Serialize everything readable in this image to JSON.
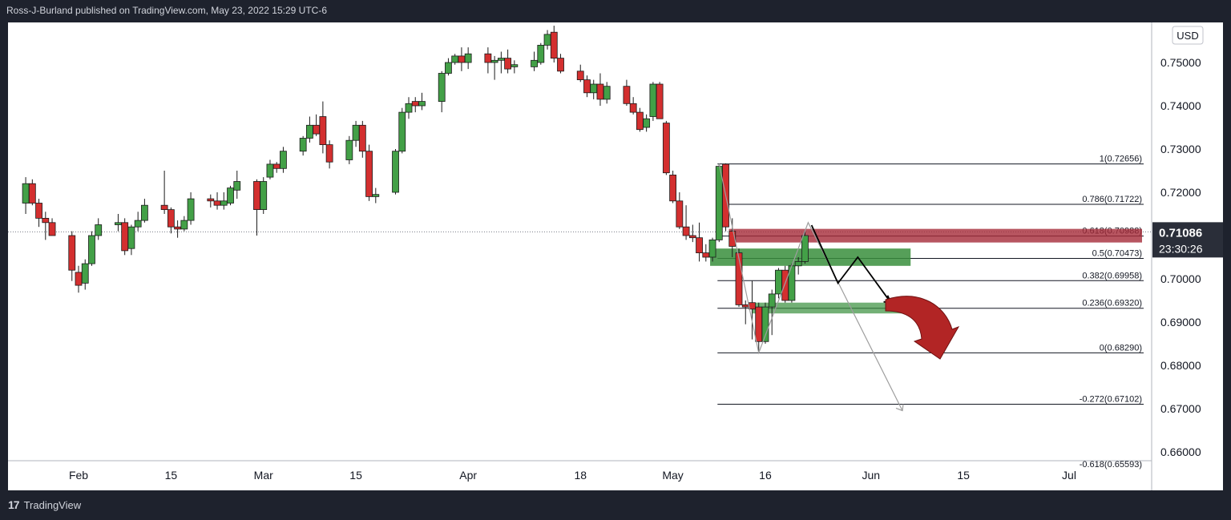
{
  "header": {
    "published": "Ross-J-Burland published on TradingView.com, May 23, 2022 15:29 UTC-6"
  },
  "footer": {
    "logo_glyph": "17",
    "brand": "TradingView"
  },
  "chart_data": {
    "type": "candlestick",
    "currency": "USD",
    "ylim": [
      0.6555,
      0.7592
    ],
    "y_ticks": [
      "0.75000",
      "0.74000",
      "0.73000",
      "0.72000",
      "0.70000",
      "0.69000",
      "0.68000",
      "0.67000",
      "0.66000"
    ],
    "y_tick_values": [
      0.75,
      0.74,
      0.73,
      0.72,
      0.7,
      0.69,
      0.68,
      0.67,
      0.66
    ],
    "x_ticks": [
      "Feb",
      "15",
      "Mar",
      "15",
      "Apr",
      "18",
      "May",
      "16",
      "Jun",
      "15",
      "Jul"
    ],
    "x_tick_dates": [
      "2022-02-01",
      "2022-02-15",
      "2022-03-01",
      "2022-03-15",
      "2022-04-01",
      "2022-04-18",
      "2022-05-02",
      "2022-05-16",
      "2022-06-01",
      "2022-06-15",
      "2022-07-01"
    ],
    "last_price": "0.71086",
    "last_price_value": 0.71086,
    "countdown": "23:30:26",
    "fib_levels": [
      {
        "label": "1(0.72656)",
        "value": 0.72656
      },
      {
        "label": "0.786(0.71722)",
        "value": 0.71722
      },
      {
        "label": "0.618(0.70988)",
        "value": 0.70988
      },
      {
        "label": "0.5(0.70473)",
        "value": 0.70473
      },
      {
        "label": "0.382(0.69958)",
        "value": 0.69958
      },
      {
        "label": "0.236(0.69320)",
        "value": 0.6932
      },
      {
        "label": "0(0.68290)",
        "value": 0.6829
      },
      {
        "label": "-0.272(0.67102)",
        "value": 0.67102
      },
      {
        "label": "-0.618(0.65593)",
        "value": 0.65593
      }
    ],
    "candles": [
      {
        "d": "2022-01-24",
        "o": 0.7175,
        "h": 0.7235,
        "l": 0.715,
        "c": 0.722
      },
      {
        "d": "2022-01-25",
        "o": 0.722,
        "h": 0.723,
        "l": 0.717,
        "c": 0.7175
      },
      {
        "d": "2022-01-26",
        "o": 0.7175,
        "h": 0.7185,
        "l": 0.712,
        "c": 0.714
      },
      {
        "d": "2022-01-27",
        "o": 0.714,
        "h": 0.7155,
        "l": 0.709,
        "c": 0.713
      },
      {
        "d": "2022-01-28",
        "o": 0.713,
        "h": 0.714,
        "l": 0.71,
        "c": 0.71
      },
      {
        "d": "2022-01-31",
        "o": 0.71,
        "h": 0.711,
        "l": 0.6995,
        "c": 0.702
      },
      {
        "d": "2022-02-01",
        "o": 0.7015,
        "h": 0.703,
        "l": 0.6968,
        "c": 0.6985
      },
      {
        "d": "2022-02-02",
        "o": 0.699,
        "h": 0.7045,
        "l": 0.6975,
        "c": 0.7035
      },
      {
        "d": "2022-02-03",
        "o": 0.7035,
        "h": 0.711,
        "l": 0.703,
        "c": 0.71
      },
      {
        "d": "2022-02-04",
        "o": 0.71,
        "h": 0.714,
        "l": 0.709,
        "c": 0.7125
      },
      {
        "d": "2022-02-07",
        "o": 0.7125,
        "h": 0.715,
        "l": 0.711,
        "c": 0.713
      },
      {
        "d": "2022-02-08",
        "o": 0.713,
        "h": 0.714,
        "l": 0.7055,
        "c": 0.7065
      },
      {
        "d": "2022-02-09",
        "o": 0.707,
        "h": 0.7125,
        "l": 0.7055,
        "c": 0.712
      },
      {
        "d": "2022-02-10",
        "o": 0.712,
        "h": 0.7155,
        "l": 0.711,
        "c": 0.7135
      },
      {
        "d": "2022-02-11",
        "o": 0.7135,
        "h": 0.7185,
        "l": 0.713,
        "c": 0.717
      },
      {
        "d": "2022-02-14",
        "o": 0.717,
        "h": 0.725,
        "l": 0.715,
        "c": 0.716
      },
      {
        "d": "2022-02-15",
        "o": 0.716,
        "h": 0.7165,
        "l": 0.7105,
        "c": 0.712
      },
      {
        "d": "2022-02-16",
        "o": 0.712,
        "h": 0.7135,
        "l": 0.7095,
        "c": 0.7115
      },
      {
        "d": "2022-02-17",
        "o": 0.7115,
        "h": 0.7145,
        "l": 0.711,
        "c": 0.7135
      },
      {
        "d": "2022-02-18",
        "o": 0.7135,
        "h": 0.72,
        "l": 0.7125,
        "c": 0.7185
      },
      {
        "d": "2022-02-21",
        "o": 0.7185,
        "h": 0.7195,
        "l": 0.7165,
        "c": 0.718
      },
      {
        "d": "2022-02-22",
        "o": 0.718,
        "h": 0.72,
        "l": 0.716,
        "c": 0.717
      },
      {
        "d": "2022-02-23",
        "o": 0.717,
        "h": 0.72,
        "l": 0.716,
        "c": 0.718
      },
      {
        "d": "2022-02-24",
        "o": 0.7175,
        "h": 0.7215,
        "l": 0.717,
        "c": 0.721
      },
      {
        "d": "2022-02-25",
        "o": 0.7205,
        "h": 0.725,
        "l": 0.7185,
        "c": 0.7225
      },
      {
        "d": "2022-02-28",
        "o": 0.7225,
        "h": 0.723,
        "l": 0.71,
        "c": 0.716
      },
      {
        "d": "2022-03-01",
        "o": 0.716,
        "h": 0.7235,
        "l": 0.715,
        "c": 0.7225
      },
      {
        "d": "2022-03-02",
        "o": 0.7235,
        "h": 0.7275,
        "l": 0.723,
        "c": 0.7265
      },
      {
        "d": "2022-03-03",
        "o": 0.7265,
        "h": 0.727,
        "l": 0.7245,
        "c": 0.7255
      },
      {
        "d": "2022-03-04",
        "o": 0.7255,
        "h": 0.7305,
        "l": 0.7245,
        "c": 0.7295
      },
      {
        "d": "2022-03-07",
        "o": 0.7295,
        "h": 0.733,
        "l": 0.7285,
        "c": 0.7325
      },
      {
        "d": "2022-03-08",
        "o": 0.7325,
        "h": 0.7375,
        "l": 0.7315,
        "c": 0.7355
      },
      {
        "d": "2022-03-09",
        "o": 0.7355,
        "h": 0.738,
        "l": 0.733,
        "c": 0.7335
      },
      {
        "d": "2022-03-10",
        "o": 0.7375,
        "h": 0.741,
        "l": 0.729,
        "c": 0.731
      },
      {
        "d": "2022-03-11",
        "o": 0.731,
        "h": 0.732,
        "l": 0.7255,
        "c": 0.727
      },
      {
        "d": "2022-03-14",
        "o": 0.7275,
        "h": 0.733,
        "l": 0.7265,
        "c": 0.732
      },
      {
        "d": "2022-03-15",
        "o": 0.732,
        "h": 0.7365,
        "l": 0.7305,
        "c": 0.7355
      },
      {
        "d": "2022-03-16",
        "o": 0.7355,
        "h": 0.7365,
        "l": 0.728,
        "c": 0.7295
      },
      {
        "d": "2022-03-17",
        "o": 0.7295,
        "h": 0.731,
        "l": 0.718,
        "c": 0.719
      },
      {
        "d": "2022-03-18",
        "o": 0.719,
        "h": 0.721,
        "l": 0.7175,
        "c": 0.7195
      },
      {
        "d": "2022-03-21",
        "o": 0.72,
        "h": 0.73,
        "l": 0.7195,
        "c": 0.7295
      },
      {
        "d": "2022-03-22",
        "o": 0.7295,
        "h": 0.7395,
        "l": 0.729,
        "c": 0.7385
      },
      {
        "d": "2022-03-23",
        "o": 0.7385,
        "h": 0.742,
        "l": 0.737,
        "c": 0.7405
      },
      {
        "d": "2022-03-24",
        "o": 0.741,
        "h": 0.742,
        "l": 0.7385,
        "c": 0.74
      },
      {
        "d": "2022-03-25",
        "o": 0.74,
        "h": 0.743,
        "l": 0.739,
        "c": 0.741
      },
      {
        "d": "2022-03-28",
        "o": 0.741,
        "h": 0.748,
        "l": 0.7385,
        "c": 0.7475
      },
      {
        "d": "2022-03-29",
        "o": 0.7475,
        "h": 0.751,
        "l": 0.747,
        "c": 0.75
      },
      {
        "d": "2022-03-30",
        "o": 0.75,
        "h": 0.752,
        "l": 0.7495,
        "c": 0.7515
      },
      {
        "d": "2022-03-31",
        "o": 0.7515,
        "h": 0.7535,
        "l": 0.748,
        "c": 0.75
      },
      {
        "d": "2022-04-01",
        "o": 0.75,
        "h": 0.7535,
        "l": 0.7485,
        "c": 0.752
      },
      {
        "d": "2022-04-04",
        "o": 0.752,
        "h": 0.7535,
        "l": 0.7475,
        "c": 0.75
      },
      {
        "d": "2022-04-05",
        "o": 0.75,
        "h": 0.7515,
        "l": 0.746,
        "c": 0.7505
      },
      {
        "d": "2022-04-06",
        "o": 0.7505,
        "h": 0.7525,
        "l": 0.7475,
        "c": 0.751
      },
      {
        "d": "2022-04-07",
        "o": 0.751,
        "h": 0.753,
        "l": 0.7475,
        "c": 0.7485
      },
      {
        "d": "2022-04-08",
        "o": 0.749,
        "h": 0.7505,
        "l": 0.7475,
        "c": 0.7495
      },
      {
        "d": "2022-04-11",
        "o": 0.749,
        "h": 0.7525,
        "l": 0.748,
        "c": 0.7505
      },
      {
        "d": "2022-04-12",
        "o": 0.75,
        "h": 0.7545,
        "l": 0.7495,
        "c": 0.754
      },
      {
        "d": "2022-04-13",
        "o": 0.754,
        "h": 0.7575,
        "l": 0.753,
        "c": 0.7565
      },
      {
        "d": "2022-04-14",
        "o": 0.757,
        "h": 0.7585,
        "l": 0.75,
        "c": 0.751
      },
      {
        "d": "2022-04-15",
        "o": 0.751,
        "h": 0.752,
        "l": 0.7475,
        "c": 0.748
      },
      {
        "d": "2022-04-18",
        "o": 0.748,
        "h": 0.7495,
        "l": 0.7455,
        "c": 0.746
      },
      {
        "d": "2022-04-19",
        "o": 0.746,
        "h": 0.747,
        "l": 0.742,
        "c": 0.743
      },
      {
        "d": "2022-04-20",
        "o": 0.743,
        "h": 0.746,
        "l": 0.7415,
        "c": 0.745
      },
      {
        "d": "2022-04-21",
        "o": 0.745,
        "h": 0.7475,
        "l": 0.74,
        "c": 0.7415
      },
      {
        "d": "2022-04-22",
        "o": 0.7415,
        "h": 0.7455,
        "l": 0.7405,
        "c": 0.7445
      },
      {
        "d": "2022-04-25",
        "o": 0.7445,
        "h": 0.746,
        "l": 0.74,
        "c": 0.7405
      },
      {
        "d": "2022-04-26",
        "o": 0.7405,
        "h": 0.742,
        "l": 0.738,
        "c": 0.7385
      },
      {
        "d": "2022-04-27",
        "o": 0.7385,
        "h": 0.7395,
        "l": 0.734,
        "c": 0.7345
      },
      {
        "d": "2022-04-28",
        "o": 0.735,
        "h": 0.738,
        "l": 0.734,
        "c": 0.737
      },
      {
        "d": "2022-04-29",
        "o": 0.7375,
        "h": 0.7455,
        "l": 0.7365,
        "c": 0.745
      },
      {
        "d": "2022-04-30",
        "o": 0.745,
        "h": 0.7455,
        "l": 0.737,
        "c": 0.737
      },
      {
        "d": "2022-05-01",
        "o": 0.736,
        "h": 0.7365,
        "l": 0.724,
        "c": 0.7245
      },
      {
        "d": "2022-05-02",
        "o": 0.724,
        "h": 0.725,
        "l": 0.7175,
        "c": 0.718
      },
      {
        "d": "2022-05-03",
        "o": 0.718,
        "h": 0.72,
        "l": 0.7115,
        "c": 0.712
      },
      {
        "d": "2022-05-04",
        "o": 0.712,
        "h": 0.717,
        "l": 0.709,
        "c": 0.71
      },
      {
        "d": "2022-05-05",
        "o": 0.71,
        "h": 0.7125,
        "l": 0.7085,
        "c": 0.7095
      },
      {
        "d": "2022-05-06",
        "o": 0.7095,
        "h": 0.713,
        "l": 0.704,
        "c": 0.706
      },
      {
        "d": "2022-05-07",
        "o": 0.706,
        "h": 0.708,
        "l": 0.704,
        "c": 0.705
      },
      {
        "d": "2022-05-08",
        "o": 0.705,
        "h": 0.7095,
        "l": 0.704,
        "c": 0.709
      },
      {
        "d": "2022-05-09",
        "o": 0.709,
        "h": 0.7265,
        "l": 0.7085,
        "c": 0.726
      },
      {
        "d": "2022-05-10",
        "o": 0.7265,
        "h": 0.7267,
        "l": 0.711,
        "c": 0.712
      },
      {
        "d": "2022-05-11",
        "o": 0.711,
        "h": 0.714,
        "l": 0.705,
        "c": 0.7075
      },
      {
        "d": "2022-05-12",
        "o": 0.706,
        "h": 0.707,
        "l": 0.6935,
        "c": 0.694
      },
      {
        "d": "2022-05-13",
        "o": 0.694,
        "h": 0.695,
        "l": 0.6895,
        "c": 0.6935
      },
      {
        "d": "2022-05-14",
        "o": 0.6945,
        "h": 0.6995,
        "l": 0.686,
        "c": 0.693
      },
      {
        "d": "2022-05-15",
        "o": 0.6935,
        "h": 0.6945,
        "l": 0.6829,
        "c": 0.6855
      },
      {
        "d": "2022-05-16",
        "o": 0.6855,
        "h": 0.6945,
        "l": 0.685,
        "c": 0.6935
      },
      {
        "d": "2022-05-17",
        "o": 0.6935,
        "h": 0.6975,
        "l": 0.687,
        "c": 0.6965
      },
      {
        "d": "2022-05-18",
        "o": 0.6965,
        "h": 0.7025,
        "l": 0.6955,
        "c": 0.702
      },
      {
        "d": "2022-05-19",
        "o": 0.702,
        "h": 0.703,
        "l": 0.6945,
        "c": 0.695
      },
      {
        "d": "2022-05-20",
        "o": 0.695,
        "h": 0.7035,
        "l": 0.6945,
        "c": 0.703
      },
      {
        "d": "2022-05-21",
        "o": 0.703,
        "h": 0.705,
        "l": 0.701,
        "c": 0.704
      },
      {
        "d": "2022-05-22",
        "o": 0.704,
        "h": 0.711,
        "l": 0.7035,
        "c": 0.71
      }
    ]
  }
}
